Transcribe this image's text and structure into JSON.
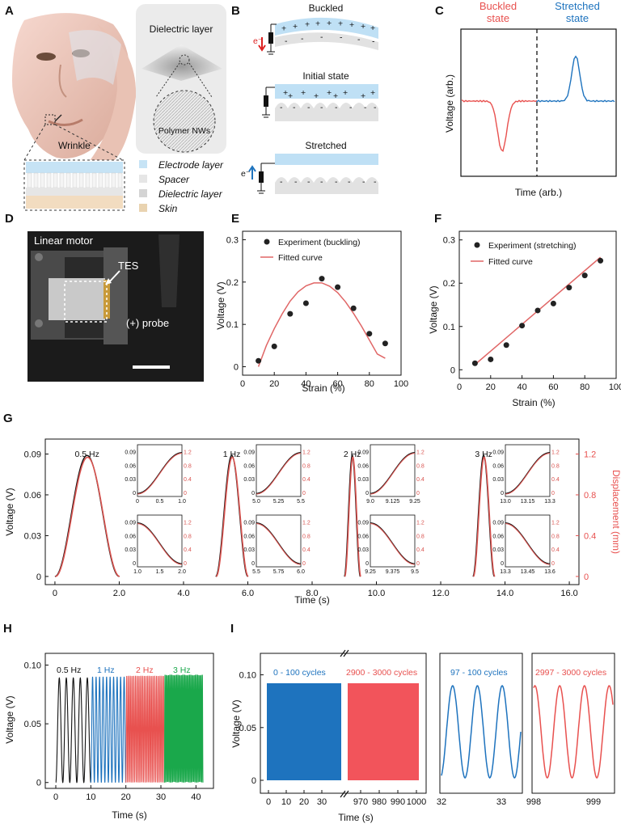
{
  "panel_labels": {
    "A": "A",
    "B": "B",
    "C": "C",
    "D": "D",
    "E": "E",
    "F": "F",
    "G": "G",
    "H": "H",
    "I": "I"
  },
  "colors": {
    "red": "#e8514f",
    "blue": "#1e73be",
    "green": "#1aa84b",
    "black": "#111111",
    "lightblue": "#bfe0f5",
    "darkred": "#8b0000"
  },
  "panelA": {
    "wrinkle": "Wrinkle",
    "dielectric_title": "Dielectric layer",
    "polymer": "Polymer NWs",
    "legend": [
      "Electrode layer",
      "Spacer",
      "Dielectric layer",
      "Skin"
    ]
  },
  "panelB": {
    "buckled": "Buckled",
    "initial": "Initial state",
    "stretched": "Stretched",
    "electron": "e⁻"
  },
  "panelC": {
    "buckled_state": "Buckled\nstate",
    "buckled_l1": "Buckled",
    "buckled_l2": "state",
    "stretched_l1": "Stretched",
    "stretched_l2": "state",
    "ylabel": "Voltage (arb.)",
    "xlabel": "Time (arb.)"
  },
  "panelD": {
    "motor": "Linear motor",
    "tes": "TES",
    "probe": "(+) probe"
  },
  "panelE": {
    "chart_data": {
      "type": "scatter",
      "legend": [
        "Experiment (buckling)",
        "Fitted curve"
      ],
      "xlabel": "Strain (%)",
      "ylabel": "Voltage (V)",
      "xlim": [
        0,
        100
      ],
      "ylim": [
        -0.02,
        0.32
      ],
      "xticks": [
        0,
        20,
        40,
        60,
        80,
        100
      ],
      "yticks": [
        0,
        0.1,
        0.2,
        0.3
      ],
      "x": [
        10,
        20,
        30,
        40,
        50,
        60,
        70,
        80,
        90
      ],
      "y": [
        0.014,
        0.048,
        0.125,
        0.15,
        0.208,
        0.188,
        0.138,
        0.078,
        0.055
      ],
      "fit": {
        "x": [
          10,
          15,
          20,
          25,
          30,
          35,
          40,
          45,
          50,
          55,
          60,
          65,
          70,
          75,
          80,
          85,
          90
        ],
        "y": [
          0.0,
          0.05,
          0.09,
          0.125,
          0.155,
          0.177,
          0.191,
          0.198,
          0.198,
          0.19,
          0.175,
          0.153,
          0.126,
          0.096,
          0.063,
          0.03,
          0.02
        ]
      }
    }
  },
  "panelF": {
    "chart_data": {
      "type": "scatter",
      "legend": [
        "Experiment (stretching)",
        "Fitted curve"
      ],
      "xlabel": "Strain (%)",
      "ylabel": "Voltage (V)",
      "xlim": [
        0,
        100
      ],
      "ylim": [
        -0.02,
        0.32
      ],
      "xticks": [
        0,
        20,
        40,
        60,
        80,
        100
      ],
      "yticks": [
        0,
        0.1,
        0.2,
        0.3
      ],
      "x": [
        10,
        20,
        30,
        40,
        50,
        60,
        70,
        80,
        90
      ],
      "y": [
        0.015,
        0.024,
        0.057,
        0.102,
        0.137,
        0.153,
        0.19,
        0.218,
        0.252
      ],
      "fit": {
        "x": [
          10,
          90
        ],
        "y": [
          0.012,
          0.26
        ]
      }
    }
  },
  "panelG": {
    "chart_data": {
      "type": "line",
      "xlabel": "Time (s)",
      "ylabel": "Voltage (V)",
      "y2label": "Displacement (mm)",
      "xlim": [
        -0.3,
        16.3
      ],
      "ylim": [
        -0.006,
        0.101
      ],
      "xticks": [
        "0",
        "2.0",
        "4.0",
        "6.0",
        "8.0",
        "10.0",
        "12.0",
        "14.0",
        "16.0"
      ],
      "yticks": [
        "0",
        "0.03",
        "0.06",
        "0.09"
      ],
      "y2ticks": [
        "0",
        "0.4",
        "0.8",
        "1.2"
      ],
      "pulses": [
        {
          "label": "0.5 Hz",
          "start": 0,
          "end": 2
        },
        {
          "label": "1 Hz",
          "start": 5,
          "end": 6
        },
        {
          "label": "2 Hz",
          "start": 9,
          "end": 9.5
        },
        {
          "label": "3 Hz",
          "start": 13,
          "end": 13.67
        }
      ],
      "insets_top": [
        [
          "0",
          "0.5",
          "1.0"
        ],
        [
          "5.0",
          "5.25",
          "5.5"
        ],
        [
          "9.0",
          "9.125",
          "9.25"
        ],
        [
          "13.0",
          "13.15",
          "13.3"
        ]
      ],
      "insets_bottom": [
        [
          "1.0",
          "1.5",
          "2.0"
        ],
        [
          "5.5",
          "5.75",
          "6.0"
        ],
        [
          "9.25",
          "9.375",
          "9.5"
        ],
        [
          "13.3",
          "13.45",
          "13.6"
        ]
      ],
      "inset_y": [
        "0",
        "0.03",
        "0.06",
        "0.09"
      ],
      "inset_y2": [
        "0",
        "0.4",
        "0.8",
        "1.2"
      ]
    }
  },
  "panelH": {
    "chart_data": {
      "type": "line",
      "xlabel": "Time (s)",
      "ylabel": "Voltage (V)",
      "xlim": [
        -3,
        45
      ],
      "ylim": [
        -0.005,
        0.11
      ],
      "xticks": [
        "0",
        "10",
        "20",
        "30",
        "40"
      ],
      "yticks": [
        "0",
        "0.05",
        "0.10"
      ],
      "segments": [
        {
          "label": "0.5 Hz",
          "from": 0,
          "to": 10,
          "freq": 0.5
        },
        {
          "label": "1 Hz",
          "from": 10,
          "to": 20,
          "freq": 1
        },
        {
          "label": "2 Hz",
          "from": 20,
          "to": 31,
          "freq": 2
        },
        {
          "label": "3 Hz",
          "from": 31,
          "to": 42,
          "freq": 3
        }
      ]
    }
  },
  "panelI": {
    "chart_data": {
      "type": "line",
      "xlabel": "Time (s)",
      "ylabel": "Voltage (V)",
      "yticks": [
        "0",
        "0.05",
        "0.10"
      ],
      "left_xticks": [
        "0",
        "10",
        "20",
        "30"
      ],
      "right_xticks": [
        "970",
        "980",
        "990",
        "1000"
      ],
      "labels": [
        "0 - 100 cycles",
        "2900 - 3000 cycles",
        "97 - 100 cycles",
        "2997 - 3000 cycles"
      ],
      "zoom1_xticks": [
        "32",
        "33"
      ],
      "zoom2_xticks": [
        "998",
        "999"
      ]
    }
  }
}
